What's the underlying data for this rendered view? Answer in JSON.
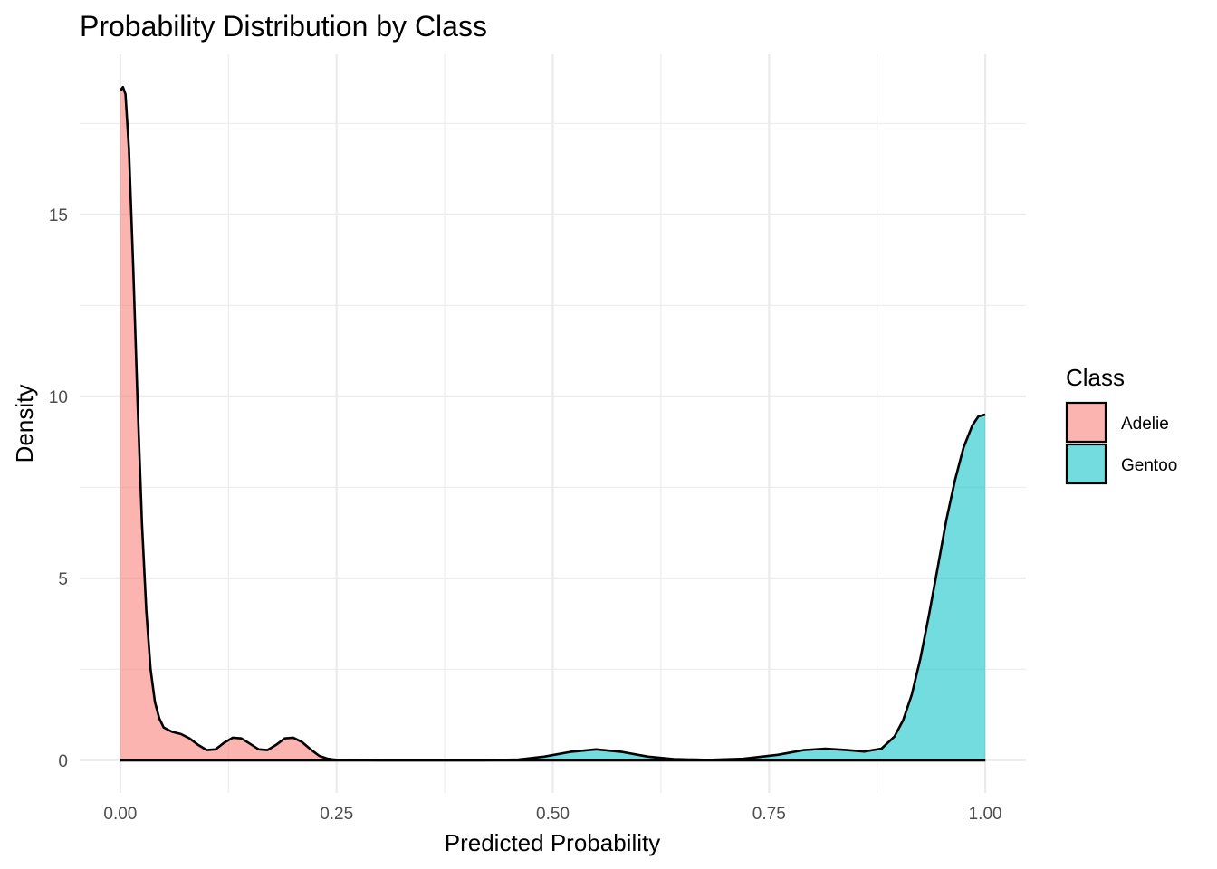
{
  "chart_data": {
    "type": "area",
    "title": "Probability Distribution by Class",
    "xlabel": "Predicted Probability",
    "ylabel": "Density",
    "xlim": [
      -0.047,
      1.047
    ],
    "ylim": [
      -0.9,
      19.4
    ],
    "x_ticks": [
      0.0,
      0.25,
      0.5,
      0.75,
      1.0
    ],
    "x_tick_labels": [
      "0.00",
      "0.25",
      "0.50",
      "0.75",
      "1.00"
    ],
    "y_ticks": [
      0,
      5,
      10,
      15
    ],
    "y_tick_labels": [
      "0",
      "5",
      "10",
      "15"
    ],
    "grid": true,
    "legend": {
      "title": "Class",
      "position": "right"
    },
    "series": [
      {
        "name": "Adelie",
        "fill": "#F8766D",
        "points": [
          [
            0.0,
            18.4
          ],
          [
            0.003,
            18.5
          ],
          [
            0.006,
            18.3
          ],
          [
            0.01,
            16.8
          ],
          [
            0.015,
            13.5
          ],
          [
            0.02,
            9.8
          ],
          [
            0.025,
            6.5
          ],
          [
            0.03,
            4.1
          ],
          [
            0.035,
            2.5
          ],
          [
            0.04,
            1.6
          ],
          [
            0.045,
            1.15
          ],
          [
            0.05,
            0.9
          ],
          [
            0.06,
            0.78
          ],
          [
            0.07,
            0.72
          ],
          [
            0.08,
            0.6
          ],
          [
            0.09,
            0.42
          ],
          [
            0.1,
            0.28
          ],
          [
            0.11,
            0.3
          ],
          [
            0.12,
            0.48
          ],
          [
            0.13,
            0.62
          ],
          [
            0.14,
            0.6
          ],
          [
            0.15,
            0.45
          ],
          [
            0.16,
            0.3
          ],
          [
            0.17,
            0.28
          ],
          [
            0.18,
            0.42
          ],
          [
            0.19,
            0.6
          ],
          [
            0.2,
            0.62
          ],
          [
            0.21,
            0.5
          ],
          [
            0.22,
            0.3
          ],
          [
            0.23,
            0.12
          ],
          [
            0.24,
            0.04
          ],
          [
            0.25,
            0.01
          ],
          [
            0.3,
            0.0
          ],
          [
            0.5,
            0.0
          ],
          [
            1.0,
            0.0
          ]
        ]
      },
      {
        "name": "Gentoo",
        "fill": "#00BFC4",
        "points": [
          [
            0.0,
            0.0
          ],
          [
            0.42,
            0.0
          ],
          [
            0.46,
            0.02
          ],
          [
            0.49,
            0.1
          ],
          [
            0.52,
            0.23
          ],
          [
            0.55,
            0.3
          ],
          [
            0.58,
            0.23
          ],
          [
            0.61,
            0.1
          ],
          [
            0.64,
            0.03
          ],
          [
            0.68,
            0.01
          ],
          [
            0.72,
            0.04
          ],
          [
            0.76,
            0.15
          ],
          [
            0.79,
            0.28
          ],
          [
            0.815,
            0.32
          ],
          [
            0.84,
            0.28
          ],
          [
            0.86,
            0.24
          ],
          [
            0.88,
            0.32
          ],
          [
            0.895,
            0.65
          ],
          [
            0.905,
            1.1
          ],
          [
            0.915,
            1.8
          ],
          [
            0.925,
            2.8
          ],
          [
            0.935,
            4.0
          ],
          [
            0.945,
            5.3
          ],
          [
            0.955,
            6.6
          ],
          [
            0.965,
            7.7
          ],
          [
            0.975,
            8.6
          ],
          [
            0.985,
            9.2
          ],
          [
            0.992,
            9.45
          ],
          [
            1.0,
            9.5
          ]
        ]
      }
    ]
  }
}
